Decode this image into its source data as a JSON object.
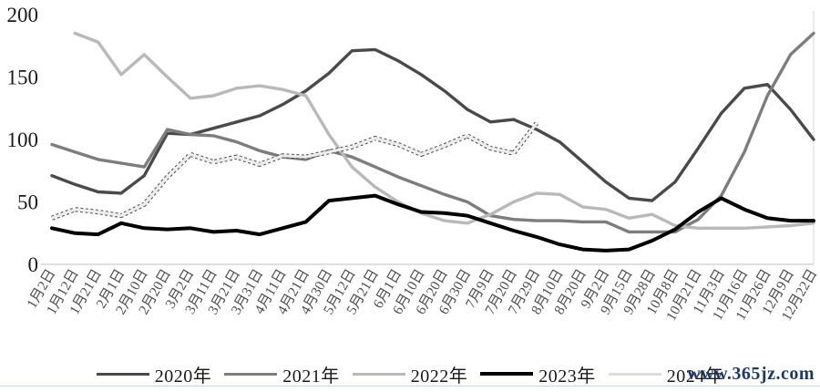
{
  "chart_data": {
    "type": "line",
    "title": "",
    "xlabel": "",
    "ylabel": "",
    "ylim": [
      0,
      200
    ],
    "grid": false,
    "legend_position": "bottom",
    "y_axis_ticks": [
      0,
      50,
      100,
      150,
      200
    ],
    "categories": [
      "1月2日",
      "1月12日",
      "1月21日",
      "2月1日",
      "2月10日",
      "2月20日",
      "3月2日",
      "3月11日",
      "3月21日",
      "3月31日",
      "4月11日",
      "4月21日",
      "4月30日",
      "5月12日",
      "5月21日",
      "6月1日",
      "6月10日",
      "6月20日",
      "6月30日",
      "7月9日",
      "7月20日",
      "7月29日",
      "8月10日",
      "8月20日",
      "9月2日",
      "9月15日",
      "9月28日",
      "10月8日",
      "10月21日",
      "11月3日",
      "11月16日",
      "11月26日",
      "12月9日",
      "12月22日"
    ],
    "series": [
      {
        "name": "2020年",
        "color": "#4a4a4a",
        "line_width": 3.4,
        "style": "solid",
        "values": [
          71,
          64,
          58,
          57,
          71,
          105,
          104,
          109,
          114,
          119,
          128,
          139,
          153,
          171,
          172,
          163,
          152,
          139,
          124,
          114,
          116,
          108,
          98,
          82,
          66,
          53,
          51,
          66,
          93,
          121,
          141,
          144,
          124,
          100
        ]
      },
      {
        "name": "2021年",
        "color": "#7d7d7d",
        "line_width": 3.4,
        "style": "solid",
        "values": [
          96,
          90,
          84,
          81,
          78,
          108,
          104,
          103,
          98,
          91,
          86,
          84,
          91,
          86,
          78,
          70,
          63,
          56,
          50,
          39,
          36,
          35,
          35,
          34,
          34,
          26,
          26,
          26,
          36,
          55,
          90,
          135,
          168,
          185
        ]
      },
      {
        "name": "2022年",
        "color": "#b9b9b9",
        "line_width": 3.4,
        "style": "solid",
        "values": [
          null,
          185,
          178,
          152,
          168,
          150,
          133,
          135,
          141,
          143,
          140,
          135,
          104,
          78,
          62,
          50,
          41,
          35,
          33,
          40,
          50,
          57,
          56,
          46,
          44,
          37,
          40,
          31,
          29,
          29,
          29,
          30,
          31,
          33
        ]
      },
      {
        "name": "2023年",
        "color": "#000000",
        "line_width": 4,
        "style": "solid",
        "values": [
          29,
          25,
          24,
          33,
          29,
          28,
          29,
          26,
          27,
          24,
          29,
          34,
          51,
          53,
          55,
          48,
          42,
          41,
          39,
          33,
          27,
          22,
          16,
          12,
          11,
          12,
          19,
          28,
          42,
          53,
          44,
          37,
          35,
          35
        ]
      },
      {
        "name": "2024年",
        "color": "#ececec",
        "edge_color": "#4d4d4d",
        "line_width": 3.2,
        "style": "dashed-ribbon",
        "values": [
          37,
          44,
          42,
          39,
          48,
          70,
          88,
          82,
          86,
          80,
          87,
          86,
          90,
          94,
          101,
          96,
          88,
          95,
          103,
          93,
          89,
          113
        ]
      }
    ]
  },
  "watermark": {
    "text": "www.365jz.com",
    "color": "#1f3864"
  }
}
